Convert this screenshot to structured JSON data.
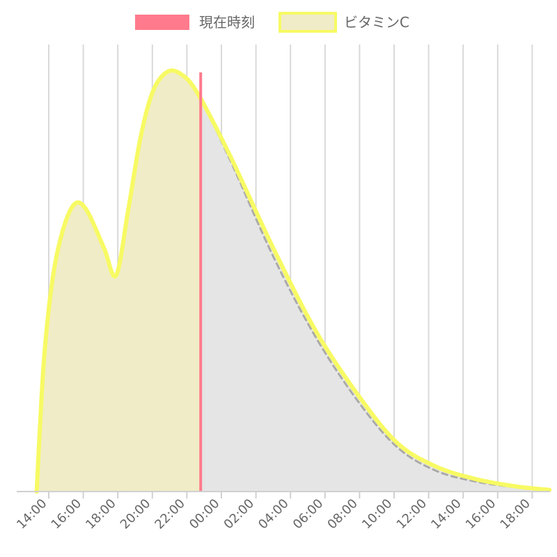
{
  "chart_data": {
    "type": "area",
    "title": "",
    "xlabel": "",
    "ylabel": "",
    "grid": "vertical",
    "legend_position": "top",
    "x_ticks": [
      "14:00",
      "16:00",
      "18:00",
      "20:00",
      "22:00",
      "00:00",
      "02:00",
      "04:00",
      "06:00",
      "08:00",
      "10:00",
      "12:00",
      "14:00",
      "16:00",
      "18:00"
    ],
    "x_unit": "hours from 14:00",
    "xlim": [
      -0.7,
      29
    ],
    "ylim": [
      0,
      100
    ],
    "current_time": 8.8,
    "legend": [
      {
        "label": "現在時刻",
        "color": "#ff7a8c",
        "border": "#ff7a8c"
      },
      {
        "label": "ビタミンC",
        "color": "#f0ecc7",
        "border": "#f7fa63"
      }
    ],
    "series": [
      {
        "name": "ビタミンC",
        "color": "#f7fa63",
        "fill_past": "#f0ecc7",
        "fill_future": "#e5e5e5",
        "points": [
          [
            -0.7,
            0
          ],
          [
            -0.3,
            30
          ],
          [
            0.2,
            50
          ],
          [
            0.8,
            62
          ],
          [
            1.5,
            68.5
          ],
          [
            2.2,
            67
          ],
          [
            3.2,
            58
          ],
          [
            3.9,
            51.5
          ],
          [
            4.6,
            67
          ],
          [
            5.3,
            84
          ],
          [
            6.0,
            95
          ],
          [
            6.8,
            99.8
          ],
          [
            7.6,
            99.6
          ],
          [
            8.6,
            95
          ],
          [
            10.5,
            80
          ],
          [
            13,
            58
          ],
          [
            15.5,
            38
          ],
          [
            18,
            22.5
          ],
          [
            20.2,
            11.5
          ],
          [
            22.4,
            6
          ],
          [
            24.7,
            3
          ],
          [
            27.1,
            1.2
          ],
          [
            29,
            0.4
          ]
        ]
      },
      {
        "name": "",
        "style": "dashed",
        "color": "#aaaaaa",
        "points": [
          [
            7.6,
            99.6
          ],
          [
            8.6,
            95
          ],
          [
            10.5,
            79
          ],
          [
            13,
            56
          ],
          [
            15.5,
            36.5
          ],
          [
            18,
            21
          ],
          [
            20.2,
            10.5
          ],
          [
            22.4,
            5
          ],
          [
            24.7,
            2.4
          ],
          [
            27.1,
            1.0
          ],
          [
            29,
            0.3
          ]
        ]
      }
    ]
  }
}
